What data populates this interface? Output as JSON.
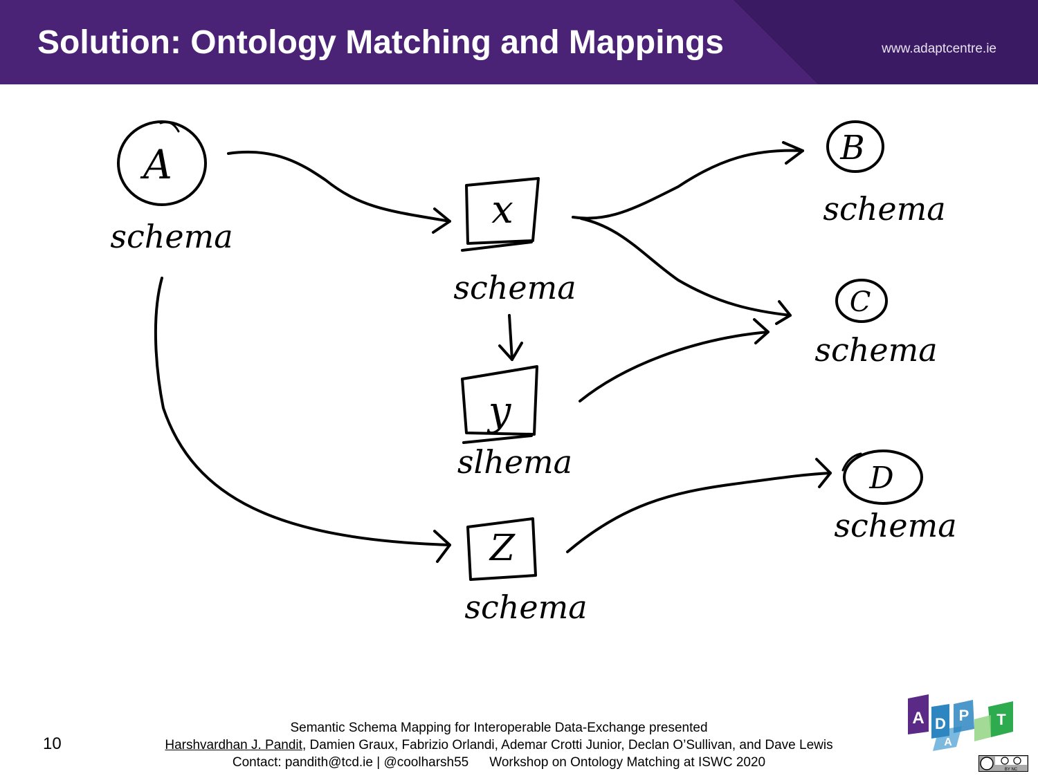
{
  "header": {
    "title": "Solution: Ontology Matching and Mappings",
    "website": "www.adaptcentre.ie"
  },
  "diagram": {
    "nodes": [
      {
        "id": "A",
        "label": "A",
        "caption": "schema"
      },
      {
        "id": "x",
        "label": "x",
        "caption": "schema"
      },
      {
        "id": "y",
        "label": "y",
        "caption": "slhema"
      },
      {
        "id": "z",
        "label": "Z",
        "caption": "schema"
      },
      {
        "id": "B",
        "label": "B",
        "caption": "schema"
      },
      {
        "id": "C",
        "label": "C",
        "caption": "schema"
      },
      {
        "id": "D",
        "label": "D",
        "caption": "schema"
      }
    ],
    "edges": [
      {
        "from": "A",
        "to": "x"
      },
      {
        "from": "A",
        "to": "z"
      },
      {
        "from": "x",
        "to": "y"
      },
      {
        "from": "x",
        "to": "B"
      },
      {
        "from": "x",
        "to": "C"
      },
      {
        "from": "y",
        "to": "C"
      },
      {
        "from": "z",
        "to": "D"
      }
    ]
  },
  "footer": {
    "page_number": "10",
    "line1": "Semantic Schema Mapping for Interoperable Data-Exchange presented",
    "author_link": "Harshvardhan J. Pandit",
    "authors_rest": ", Damien Graux, Fabrizio Orlandi, Ademar Crotti Junior, Declan O’Sullivan, and Dave Lewis",
    "contact": "Contact: pandith@tcd.ie | @coolharsh55",
    "event": "Workshop on Ontology Matching at ISWC 2020"
  },
  "logo": {
    "letters": [
      "A",
      "D",
      "P",
      "T",
      "A"
    ],
    "license": "BY NC"
  },
  "colors": {
    "header": "#4a2377",
    "logo_purple": "#5b2a86",
    "logo_blue": "#2e86c1",
    "logo_green": "#2eaa4f"
  }
}
